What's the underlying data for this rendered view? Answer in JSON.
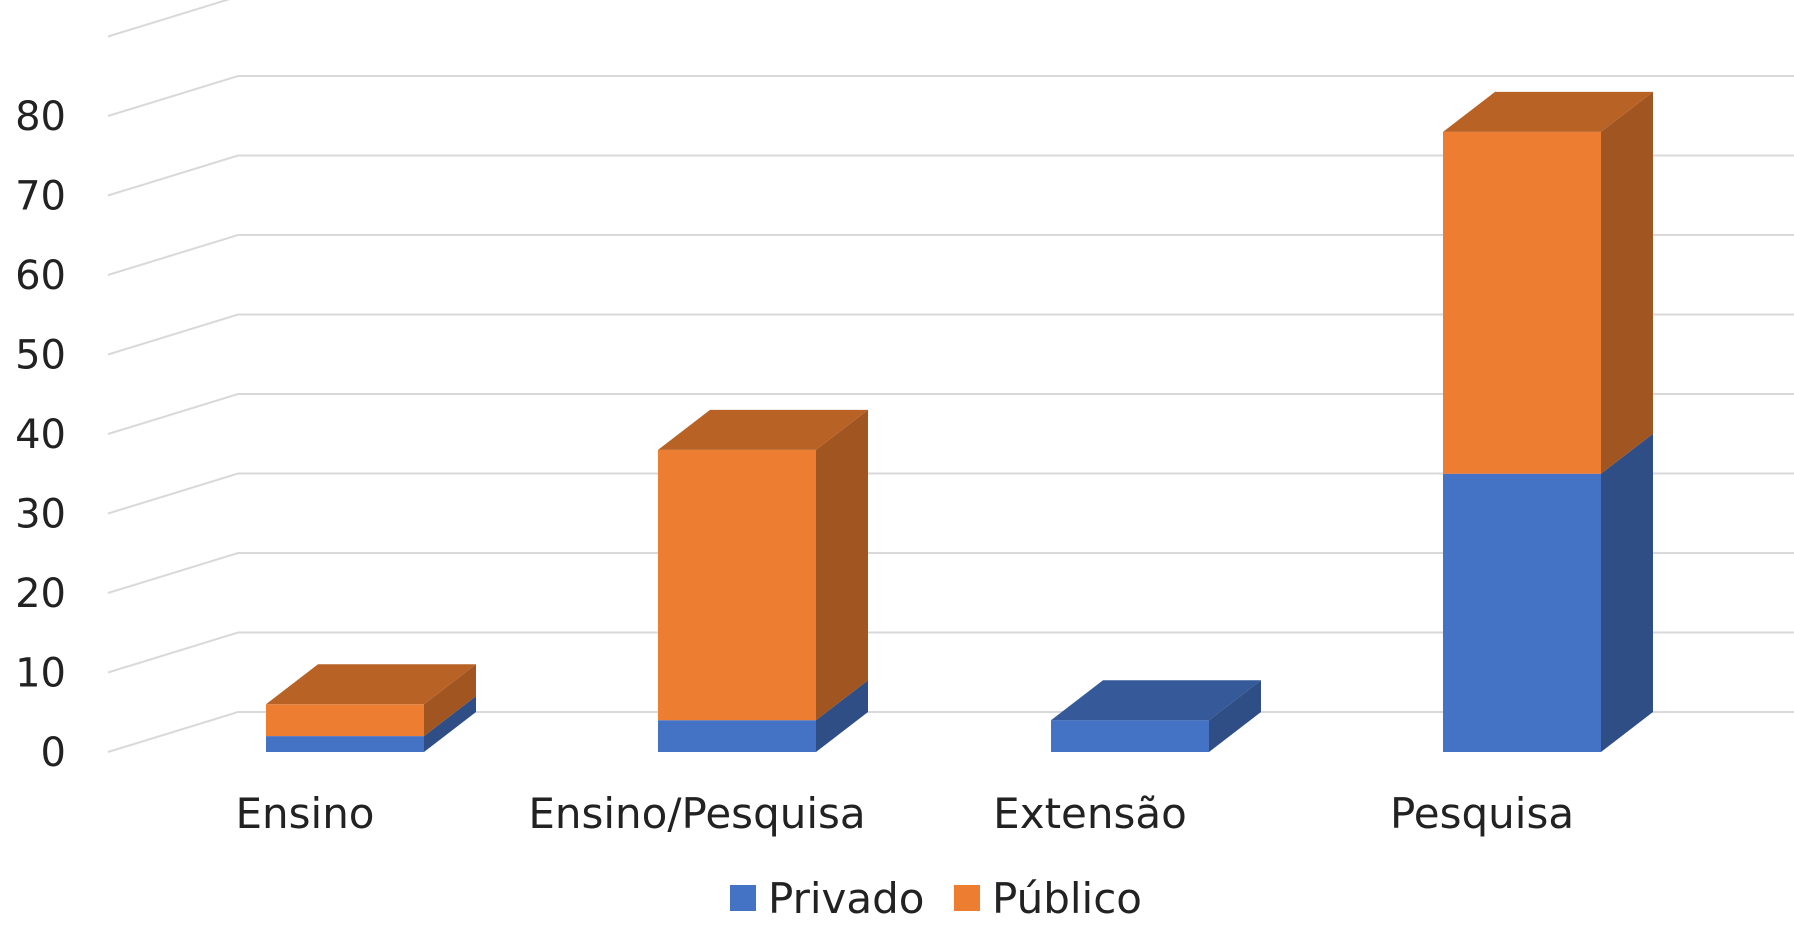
{
  "chart_data": {
    "type": "bar",
    "stacked": true,
    "three_d": true,
    "title": "",
    "xlabel": "",
    "ylabel": "",
    "categories": [
      "Ensino",
      "Ensino/Pesquisa",
      "Extensão",
      "Pesquisa"
    ],
    "series": [
      {
        "name": "Privado",
        "color": "#4472C4",
        "values": [
          2,
          4,
          4,
          35
        ]
      },
      {
        "name": "Público",
        "color": "#ED7D31",
        "values": [
          4,
          34,
          0,
          43
        ]
      }
    ],
    "y_ticks": [
      "0",
      "10",
      "20",
      "30",
      "40",
      "50",
      "60",
      "70",
      "80"
    ],
    "ylim": [
      0,
      90
    ],
    "grid": true,
    "legend": {
      "position": "bottom"
    }
  }
}
